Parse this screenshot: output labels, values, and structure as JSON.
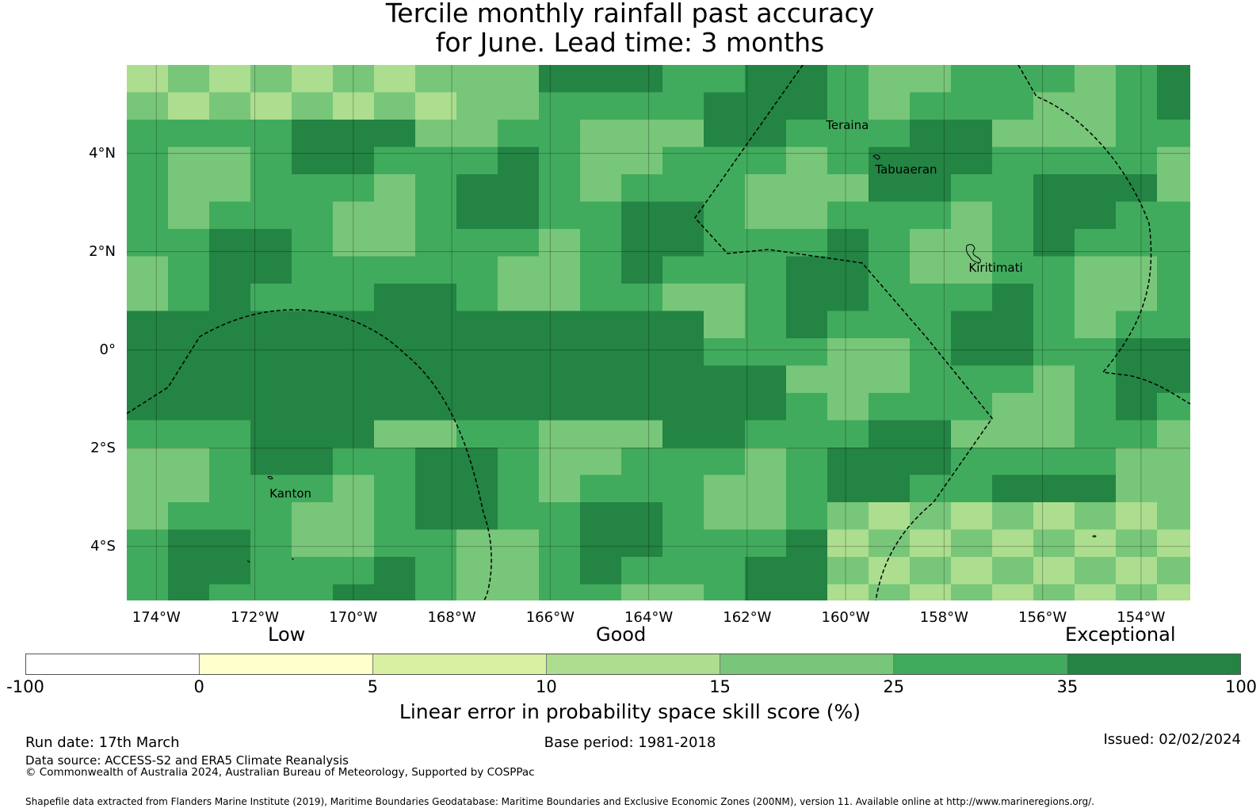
{
  "title": {
    "line1": "Tercile monthly rainfall past accuracy",
    "line2": "for June. Lead time: 3 months"
  },
  "map": {
    "lat_labels": [
      "4°N",
      "2°N",
      "0°",
      "2°S",
      "4°S"
    ],
    "lat_values": [
      4,
      2,
      0,
      -2,
      -4
    ],
    "lon_labels": [
      "174°W",
      "172°W",
      "170°W",
      "168°W",
      "166°W",
      "164°W",
      "162°W",
      "160°W",
      "158°W",
      "156°W",
      "154°W"
    ],
    "lon_values": [
      -174,
      -172,
      -170,
      -168,
      -166,
      -164,
      -162,
      -160,
      -158,
      -156,
      -154
    ],
    "extent": {
      "lon_min": -174.6,
      "lon_max": -153.0,
      "lat_min": -5.1,
      "lat_max": 5.8
    },
    "places": [
      {
        "name": "Teraina",
        "lon": -160.4,
        "lat": 4.7
      },
      {
        "name": "Tabuaeran",
        "lon": -159.4,
        "lat": 3.8
      },
      {
        "name": "Kiritimati",
        "lon": -157.5,
        "lat": 1.8
      },
      {
        "name": "Kanton",
        "lon": -171.7,
        "lat": -2.8
      }
    ]
  },
  "colorbar": {
    "categories": [
      "Low",
      "Good",
      "Exceptional"
    ],
    "tick_labels": [
      "-100",
      "0",
      "5",
      "10",
      "15",
      "25",
      "35",
      "100"
    ],
    "colors": [
      "#ffffff",
      "#ffffcc",
      "#d9f0a3",
      "#addd8e",
      "#78c679",
      "#41ab5d",
      "#238443"
    ],
    "title": "Linear error in probability space skill score (%)"
  },
  "footer": {
    "run_date": "Run date: 17th March",
    "base_period": "Base period: 1981-2018",
    "issued": "Issued: 02/02/2024",
    "data_source": "Data source: ACCESS-S2 and ERA5 Climate Reanalysis",
    "copyright": "© Commonwealth of Australia 2024, Australian Bureau of Meteorology, Supported by COSPPac",
    "shapefile": "Shapefile data extracted from Flanders Marine Institute (2019), Maritime Boundaries Geodatabase: Maritime Boundaries and Exclusive Economic Zones (200NM), version 11. Available online at http://www.marineregions.org/."
  }
}
